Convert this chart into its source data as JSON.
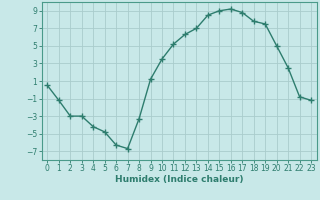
{
  "x": [
    0,
    1,
    2,
    3,
    4,
    5,
    6,
    7,
    8,
    9,
    10,
    11,
    12,
    13,
    14,
    15,
    16,
    17,
    18,
    19,
    20,
    21,
    22,
    23
  ],
  "y": [
    0.5,
    -1.2,
    -3.0,
    -3.0,
    -4.2,
    -4.8,
    -6.3,
    -6.7,
    -3.3,
    1.2,
    3.5,
    5.2,
    6.3,
    7.0,
    8.5,
    9.0,
    9.2,
    8.8,
    7.8,
    7.5,
    5.0,
    2.5,
    -0.8,
    -1.2
  ],
  "line_color": "#2e7d6e",
  "marker": "+",
  "marker_size": 4,
  "background_color": "#c8e8e8",
  "grid_color": "#aacccc",
  "xlabel": "Humidex (Indice chaleur)",
  "xlim": [
    -0.5,
    23.5
  ],
  "ylim": [
    -8,
    10
  ],
  "yticks": [
    -7,
    -5,
    -3,
    -1,
    1,
    3,
    5,
    7,
    9
  ],
  "xticks": [
    0,
    1,
    2,
    3,
    4,
    5,
    6,
    7,
    8,
    9,
    10,
    11,
    12,
    13,
    14,
    15,
    16,
    17,
    18,
    19,
    20,
    21,
    22,
    23
  ],
  "tick_fontsize": 5.5,
  "xlabel_fontsize": 6.5,
  "line_width": 1.0,
  "marker_color": "#2e7d6e"
}
